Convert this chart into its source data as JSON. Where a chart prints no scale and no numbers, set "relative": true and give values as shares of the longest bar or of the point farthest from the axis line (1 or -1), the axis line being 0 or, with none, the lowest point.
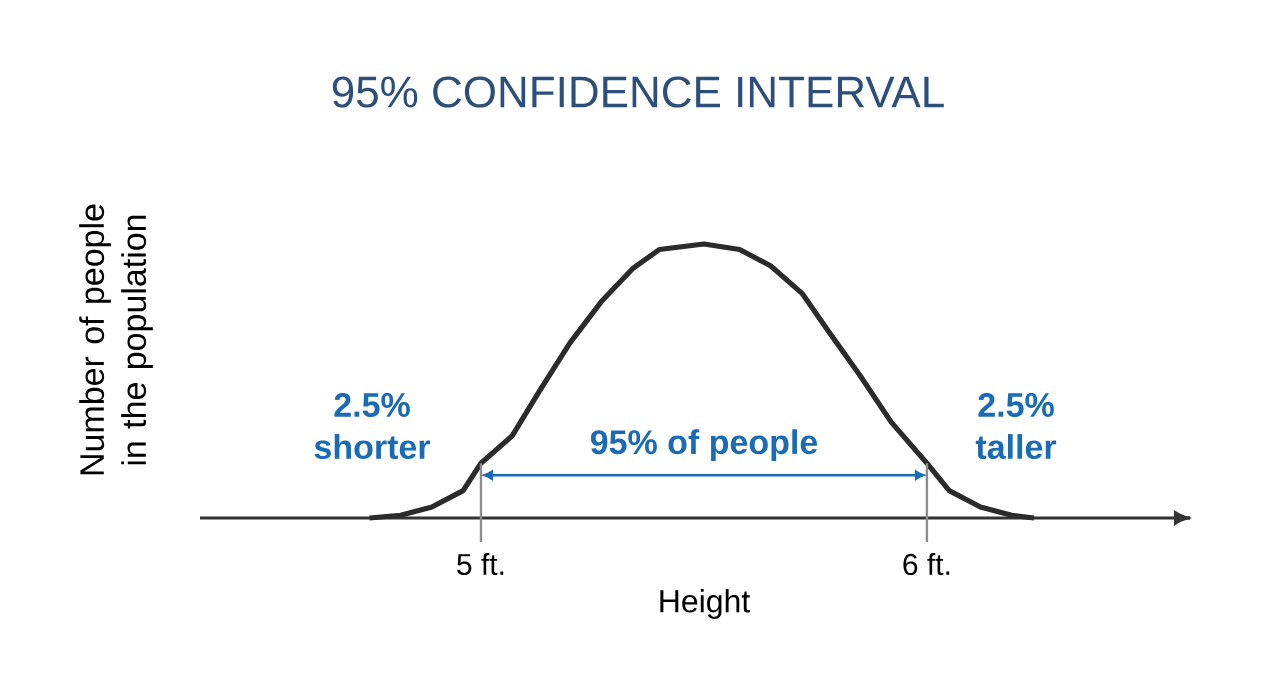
{
  "chart_data": {
    "type": "line",
    "title": "95% CONFIDENCE INTERVAL",
    "xlabel": "Height",
    "ylabel": "Number of people in the population",
    "relative": true,
    "x": [
      4.75,
      4.82,
      4.89,
      4.96,
      5.0,
      5.07,
      5.13,
      5.2,
      5.27,
      5.34,
      5.4,
      5.5,
      5.58,
      5.65,
      5.72,
      5.78,
      5.85,
      5.92,
      6.0,
      6.05,
      6.12,
      6.19,
      6.24
    ],
    "series": [
      {
        "color": "#2b2b2b",
        "values": [
          0,
          0.01,
          0.04,
          0.1,
          0.2,
          0.3,
          0.46,
          0.64,
          0.79,
          0.91,
          0.98,
          1.0,
          0.98,
          0.92,
          0.82,
          0.68,
          0.52,
          0.35,
          0.2,
          0.1,
          0.04,
          0.01,
          0
        ]
      }
    ],
    "xlim": [
      4.37,
      6.59
    ],
    "xticks": [
      {
        "value": 5,
        "label": "5 ft."
      },
      {
        "value": 6,
        "label": "6 ft."
      }
    ],
    "ref_lines": [
      {
        "axis": "x",
        "value": 5,
        "color": "#8c8c8c"
      },
      {
        "axis": "x",
        "value": 6,
        "color": "#8c8c8c"
      }
    ],
    "annotations": [
      "2.5% shorter",
      "95% of people",
      "2.5% taller"
    ],
    "line_style": "solid"
  }
}
